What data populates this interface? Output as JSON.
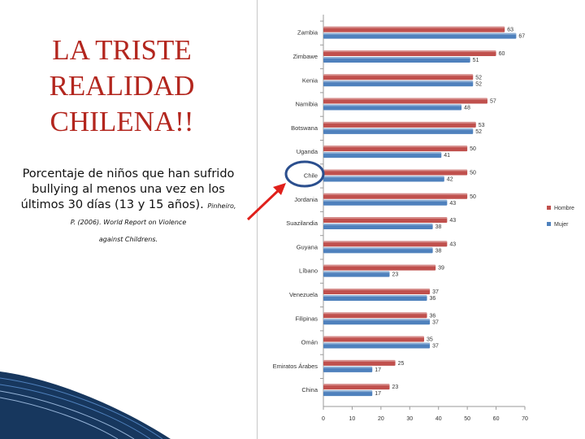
{
  "slide": {
    "title_lines": [
      "LA TRISTE",
      "REALIDAD",
      "CHILENA!!"
    ],
    "subtitle_main": "Porcentaje de niños que han sufrido bullying al menos una vez en los últimos 30 días (13 y 15 años).",
    "subtitle_source_a": "Pinheiro, P. (2006). ",
    "subtitle_source_b": "World Report on Violence",
    "subtitle_source_c": "against Childrens.",
    "highlight_category": "Chile"
  },
  "chart_data": {
    "type": "bar",
    "orientation": "horizontal",
    "categories": [
      "Zambia",
      "Zimbawe",
      "Kenia",
      "Namibia",
      "Botswana",
      "Uganda",
      "Chile",
      "Jordania",
      "Suazilandia",
      "Guyana",
      "Líbano",
      "Venezuela",
      "Filipinas",
      "Omán",
      "Emiratos Árabes",
      "China"
    ],
    "series": [
      {
        "name": "Hombre",
        "color": "#c0504d",
        "values": [
          63,
          60,
          52,
          57,
          53,
          50,
          50,
          50,
          43,
          43,
          39,
          37,
          36,
          35,
          25,
          23
        ]
      },
      {
        "name": "Mujer",
        "color": "#4f81bd",
        "values": [
          67,
          51,
          52,
          48,
          52,
          41,
          42,
          43,
          38,
          38,
          23,
          36,
          37,
          37,
          17,
          17
        ]
      }
    ],
    "xlim": [
      0,
      70
    ],
    "xticks": [
      0,
      10,
      20,
      30,
      40,
      50,
      60,
      70
    ],
    "legend_position": "right",
    "grid": false
  }
}
